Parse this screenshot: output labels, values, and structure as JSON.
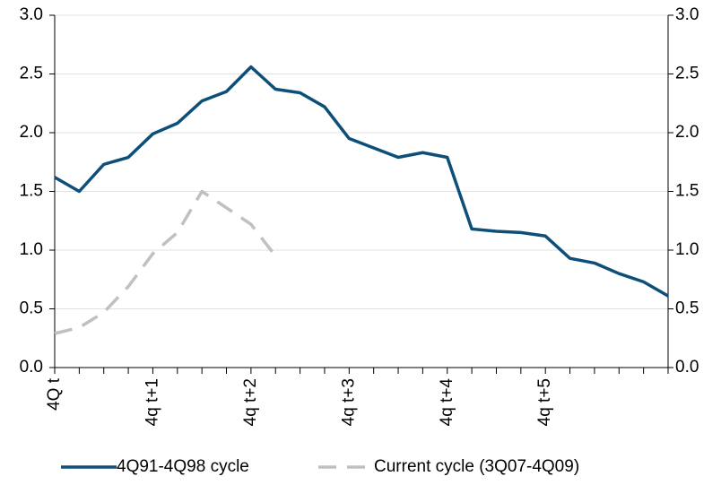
{
  "chart_data": {
    "type": "line",
    "categories": [
      "4Q t",
      null,
      null,
      null,
      "4q t+1",
      null,
      null,
      null,
      "4q t+2",
      null,
      null,
      null,
      "4q t+3",
      null,
      null,
      null,
      "4q t+4",
      null,
      null,
      null,
      "4q t+5",
      null,
      null,
      null,
      null,
      null
    ],
    "series": [
      {
        "name": "4Q91-4Q98 cycle",
        "color": "#0d4f78",
        "dash": false,
        "values": [
          1.62,
          1.5,
          1.73,
          1.79,
          1.99,
          2.08,
          2.27,
          2.35,
          2.56,
          2.37,
          2.34,
          2.22,
          1.95,
          1.87,
          1.79,
          1.83,
          1.79,
          1.18,
          1.16,
          1.15,
          1.12,
          0.93,
          0.89,
          0.8,
          0.73,
          0.61
        ]
      },
      {
        "name": "Current cycle (3Q07-4Q09)",
        "color": "#c0c0c0",
        "dash": true,
        "values": [
          0.29,
          0.34,
          0.47,
          0.69,
          0.97,
          1.15,
          1.5,
          1.36,
          1.22,
          0.95,
          null,
          null,
          null,
          null,
          null,
          null,
          null,
          null,
          null,
          null,
          null,
          null,
          null,
          null,
          null,
          null
        ]
      }
    ],
    "ylim": [
      0,
      3
    ],
    "yticks": [
      {
        "value": 0,
        "label": "0.0"
      },
      0.5,
      {
        "value": 1,
        "label": "1.0"
      },
      1.5,
      {
        "value": 2,
        "label": "2.0"
      },
      2.5,
      {
        "value": 3,
        "label": "3.0"
      }
    ],
    "y2lim": [
      0,
      3
    ],
    "y2ticks": [
      {
        "value": 0,
        "label": "0.0"
      },
      0.5,
      {
        "value": 1,
        "label": "1.0"
      },
      1.5,
      {
        "value": 2,
        "label": "2.0"
      },
      2.5,
      {
        "value": 3,
        "label": "3.0"
      }
    ],
    "grid": true,
    "legend": "bottom"
  }
}
